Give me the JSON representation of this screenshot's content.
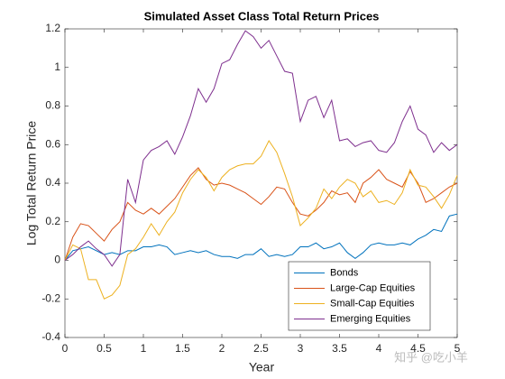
{
  "chart_data": {
    "type": "line",
    "title": "Simulated Asset Class Total Return Prices",
    "x_label": "Year",
    "y_label": "Log Total Return Price",
    "watermark": "知乎 @吃小羊",
    "x": [
      0,
      0.1,
      0.2,
      0.3,
      0.4,
      0.5,
      0.6,
      0.7,
      0.8,
      0.9,
      1,
      1.1,
      1.2,
      1.3,
      1.4,
      1.5,
      1.6,
      1.7,
      1.8,
      1.9,
      2,
      2.1,
      2.2,
      2.3,
      2.4,
      2.5,
      2.6,
      2.7,
      2.8,
      2.9,
      3,
      3.1,
      3.2,
      3.3,
      3.4,
      3.5,
      3.6,
      3.7,
      3.8,
      3.9,
      4,
      4.1,
      4.2,
      4.3,
      4.4,
      4.5,
      4.6,
      4.7,
      4.8,
      4.9,
      5
    ],
    "series": [
      {
        "name": "Bonds",
        "color": "#0072BD",
        "values": [
          0,
          0.05,
          0.06,
          0.07,
          0.05,
          0.03,
          0.04,
          0.03,
          0.05,
          0.05,
          0.07,
          0.07,
          0.08,
          0.07,
          0.03,
          0.04,
          0.05,
          0.04,
          0.05,
          0.03,
          0.02,
          0.02,
          0.01,
          0.03,
          0.03,
          0.06,
          0.02,
          0.03,
          0.02,
          0.03,
          0.07,
          0.07,
          0.09,
          0.06,
          0.07,
          0.09,
          0.04,
          0.01,
          0.04,
          0.08,
          0.09,
          0.08,
          0.08,
          0.09,
          0.08,
          0.11,
          0.13,
          0.16,
          0.15,
          0.23,
          0.24
        ]
      },
      {
        "name": "Large-Cap Equities",
        "color": "#D95319",
        "values": [
          0,
          0.12,
          0.19,
          0.18,
          0.14,
          0.1,
          0.16,
          0.2,
          0.3,
          0.26,
          0.24,
          0.27,
          0.24,
          0.28,
          0.32,
          0.38,
          0.44,
          0.48,
          0.42,
          0.39,
          0.4,
          0.39,
          0.37,
          0.35,
          0.32,
          0.29,
          0.33,
          0.38,
          0.37,
          0.3,
          0.24,
          0.23,
          0.26,
          0.3,
          0.36,
          0.34,
          0.35,
          0.3,
          0.4,
          0.43,
          0.47,
          0.42,
          0.4,
          0.38,
          0.46,
          0.4,
          0.3,
          0.32,
          0.35,
          0.38,
          0.4
        ]
      },
      {
        "name": "Small-Cap Equities",
        "color": "#EDB120",
        "values": [
          0,
          0.08,
          0.06,
          -0.1,
          -0.1,
          -0.2,
          -0.18,
          -0.13,
          0.03,
          0.06,
          0.12,
          0.19,
          0.13,
          0.2,
          0.25,
          0.35,
          0.42,
          0.47,
          0.43,
          0.36,
          0.43,
          0.47,
          0.49,
          0.5,
          0.5,
          0.54,
          0.62,
          0.56,
          0.45,
          0.33,
          0.18,
          0.22,
          0.27,
          0.37,
          0.32,
          0.38,
          0.42,
          0.4,
          0.33,
          0.36,
          0.3,
          0.31,
          0.29,
          0.35,
          0.47,
          0.39,
          0.38,
          0.33,
          0.27,
          0.34,
          0.44
        ]
      },
      {
        "name": "Emerging Equities",
        "color": "#7E2F8E",
        "values": [
          0,
          0.03,
          0.07,
          0.1,
          0.06,
          0.03,
          -0.03,
          0.03,
          0.42,
          0.3,
          0.52,
          0.57,
          0.59,
          0.62,
          0.55,
          0.64,
          0.75,
          0.89,
          0.82,
          0.89,
          1.02,
          1.04,
          1.12,
          1.19,
          1.16,
          1.1,
          1.14,
          1.06,
          0.98,
          0.97,
          0.72,
          0.83,
          0.85,
          0.74,
          0.83,
          0.62,
          0.63,
          0.59,
          0.61,
          0.62,
          0.57,
          0.56,
          0.61,
          0.72,
          0.8,
          0.68,
          0.65,
          0.56,
          0.61,
          0.57,
          0.6
        ]
      }
    ],
    "xlim": [
      0,
      5
    ],
    "xticks": [
      0,
      0.5,
      1,
      1.5,
      2,
      2.5,
      3,
      3.5,
      4,
      4.5,
      5
    ],
    "ylim": [
      -0.4,
      1.2
    ],
    "yticks": [
      -0.4,
      -0.2,
      0,
      0.2,
      0.4,
      0.6,
      0.8,
      1,
      1.2
    ],
    "grid": false,
    "legend": "southeast"
  }
}
